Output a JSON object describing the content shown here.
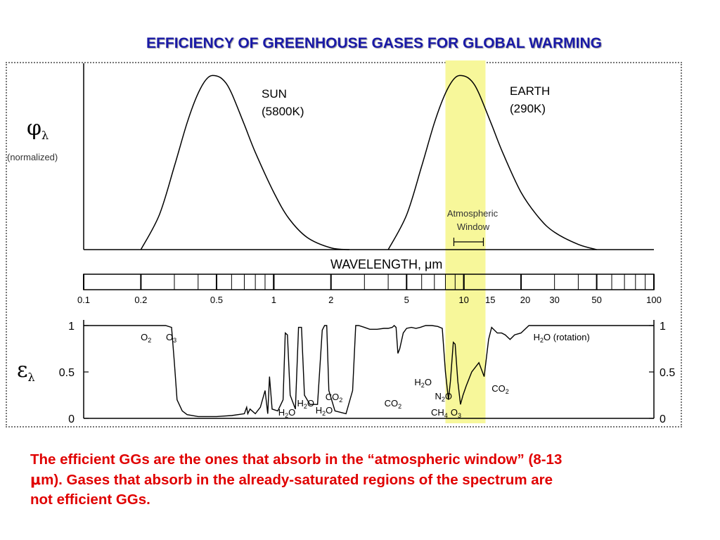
{
  "title": "EFFICIENCY OF GREENHOUSE GASES FOR GLOBAL WARMING",
  "caption": {
    "line1": "The efficient GGs are the ones that absorb in the “atmospheric window” (8-13",
    "line2_mu": "μ",
    "line2_rest": "m).  Gases that absorb in the already-saturated regions of the spectrum are",
    "line3": "not efficient GGs."
  },
  "colors": {
    "title": "#1a1aa6",
    "caption": "#e00000",
    "window_highlight": "#f7f79a",
    "curve": "#000000"
  },
  "chart_data": [
    {
      "type": "line",
      "panel": "blackbody spectra",
      "ylabel_symbol": "φ",
      "ylabel_sub": "λ",
      "ylabel_note": "(normalized)",
      "xscale": "log",
      "xlim": [
        0.1,
        100
      ],
      "series": [
        {
          "name": "SUN",
          "label_line1": "SUN",
          "label_line2": "(5800K)",
          "peak_um": 0.5,
          "x": [
            0.2,
            0.25,
            0.3,
            0.35,
            0.4,
            0.45,
            0.5,
            0.55,
            0.6,
            0.7,
            0.8,
            1.0,
            1.2,
            1.5,
            2.0,
            2.5
          ],
          "y": [
            0.0,
            0.2,
            0.48,
            0.73,
            0.9,
            0.99,
            1.0,
            0.97,
            0.9,
            0.72,
            0.56,
            0.33,
            0.18,
            0.07,
            0.01,
            0.0
          ]
        },
        {
          "name": "EARTH",
          "label_line1": "EARTH",
          "label_line2": "(290K)",
          "peak_um": 10,
          "x": [
            4,
            5,
            6,
            7,
            8,
            9,
            10,
            11,
            12,
            14,
            16,
            20,
            25,
            30,
            40,
            50
          ],
          "y": [
            0.0,
            0.2,
            0.48,
            0.73,
            0.9,
            0.99,
            1.0,
            0.97,
            0.9,
            0.72,
            0.56,
            0.33,
            0.18,
            0.1,
            0.03,
            0.0
          ]
        }
      ],
      "annotation": {
        "line1": "Atmospheric",
        "line2": "Window",
        "x_range_um": [
          8,
          13
        ]
      }
    },
    {
      "type": "axis",
      "panel": "wavelength scale",
      "label": "WAVELENGTH, μm",
      "tick_labels": [
        "0.1",
        "0.2",
        "0.5",
        "1",
        "2",
        "5",
        "10",
        "15",
        "20",
        "30",
        "50",
        "100"
      ],
      "tick_values": [
        0.1,
        0.2,
        0.5,
        1,
        2,
        5,
        10,
        15,
        20,
        30,
        50,
        100
      ]
    },
    {
      "type": "line",
      "panel": "atmospheric absorption",
      "ylabel_symbol": "ε",
      "ylabel_sub": "λ",
      "yticks": [
        "0",
        "0.5",
        "1"
      ],
      "ylim": [
        0,
        1
      ],
      "xscale": "log",
      "xlim": [
        0.1,
        100
      ],
      "series": [
        {
          "name": "absorptivity",
          "x": [
            0.1,
            0.2,
            0.27,
            0.29,
            0.3,
            0.31,
            0.33,
            0.35,
            0.4,
            0.5,
            0.6,
            0.7,
            0.72,
            0.73,
            0.75,
            0.8,
            0.85,
            0.9,
            0.93,
            0.95,
            0.98,
            1.05,
            1.12,
            1.15,
            1.18,
            1.22,
            1.3,
            1.35,
            1.4,
            1.45,
            1.55,
            1.7,
            1.8,
            1.85,
            1.9,
            1.95,
            2.1,
            2.4,
            2.6,
            2.7,
            2.8,
            3.0,
            3.2,
            3.5,
            3.8,
            4.0,
            4.2,
            4.3,
            4.4,
            4.5,
            4.6,
            4.8,
            5.0,
            5.3,
            5.6,
            5.9,
            6.3,
            6.8,
            7.3,
            7.7,
            8.0,
            8.3,
            8.5,
            8.8,
            9.0,
            9.3,
            9.6,
            9.9,
            10.3,
            11.0,
            12.0,
            12.8,
            13.5,
            14.0,
            15.0,
            15.8,
            16.5,
            17.5,
            18.5,
            20,
            22,
            25,
            30,
            40,
            50,
            100
          ],
          "y": [
            1,
            1,
            1,
            0.98,
            0.6,
            0.2,
            0.08,
            0.04,
            0.02,
            0.02,
            0.03,
            0.05,
            0.12,
            0.05,
            0.1,
            0.05,
            0.12,
            0.3,
            0.05,
            0.45,
            0.1,
            0.08,
            0.2,
            0.92,
            0.9,
            0.25,
            0.1,
            0.98,
            0.98,
            0.25,
            0.15,
            0.15,
            0.95,
            1,
            1,
            0.3,
            0.08,
            0.05,
            0.3,
            1,
            1,
            0.98,
            0.96,
            0.96,
            0.97,
            0.97,
            0.98,
            1,
            0.98,
            0.7,
            0.75,
            0.92,
            0.97,
            0.98,
            0.97,
            0.98,
            1,
            1,
            0.99,
            0.97,
            0.5,
            0.2,
            0.4,
            0.82,
            0.8,
            0.4,
            0.15,
            0.25,
            0.35,
            0.5,
            0.6,
            0.45,
            0.85,
            0.98,
            0.92,
            0.92,
            0.9,
            0.85,
            0.9,
            0.92,
            1,
            1,
            1,
            1,
            1,
            1
          ]
        }
      ],
      "labels": [
        {
          "gas": "O",
          "sub": "2",
          "x_um": 0.21
        },
        {
          "gas": "O",
          "sub": "3",
          "x_um": 0.29
        },
        {
          "gas": "H",
          "sub": "2",
          "tail": "O",
          "x_um": 1.15
        },
        {
          "gas": "H",
          "sub": "2",
          "tail": "O",
          "x_um": 1.6
        },
        {
          "gas": "CO",
          "sub": "2",
          "x_um": 2.0
        },
        {
          "gas": "H",
          "sub": "2",
          "tail": "O",
          "x_um": 2.0
        },
        {
          "gas": "CO",
          "sub": "2",
          "x_um": 4.3
        },
        {
          "gas": "H",
          "sub": "2",
          "tail": "O",
          "x_um": 6.3
        },
        {
          "gas": "N",
          "sub": "2",
          "tail": "O",
          "x_um": 7.8
        },
        {
          "gas": "CH",
          "sub": "4",
          "x_um": 7.7
        },
        {
          "gas": "O",
          "sub": "3",
          "x_um": 9.6
        },
        {
          "gas": "CO",
          "sub": "2",
          "x_um": 15
        },
        {
          "gas": "H",
          "sub": "2",
          "tail": "O (rotation)",
          "x_um": 30
        }
      ]
    }
  ]
}
